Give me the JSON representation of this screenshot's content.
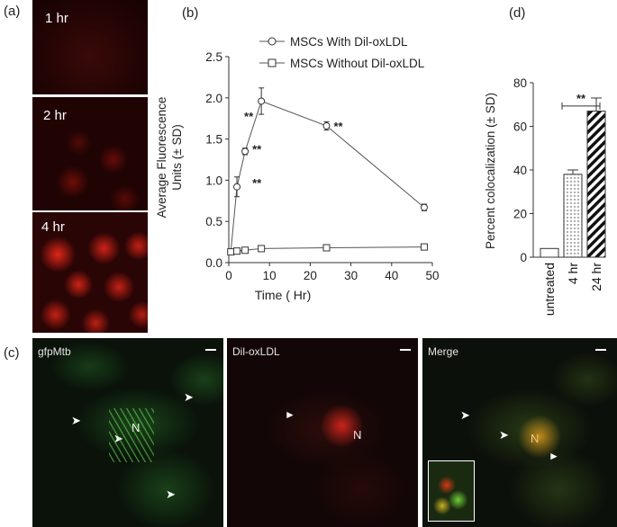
{
  "panels": {
    "a": {
      "letter": "(a)",
      "tiles": [
        {
          "label": "1 hr"
        },
        {
          "label": "2 hr"
        },
        {
          "label": "4 hr"
        }
      ]
    },
    "c": {
      "letter": "(c)",
      "channels": [
        {
          "label": "gfpMtb",
          "nucleus": "N"
        },
        {
          "label": "Dil-oxLDL",
          "nucleus": "N"
        },
        {
          "label": "Merge",
          "nucleus": "N"
        }
      ]
    }
  },
  "chart_data": [
    {
      "id": "b",
      "letter": "(b)",
      "type": "line",
      "xlabel": "Time ( Hr)",
      "ylabel_line1": "Average Fluorescence",
      "ylabel_line2": "Units (± SD)",
      "xlim": [
        0,
        50
      ],
      "ylim": [
        0,
        2.5
      ],
      "xticks": [
        0,
        10,
        20,
        30,
        40,
        50
      ],
      "yticks": [
        0.0,
        0.5,
        1.0,
        1.5,
        2.0,
        2.5
      ],
      "ytick_labels": [
        "0.0",
        "0.5",
        "1.0",
        "1.5",
        "2.0",
        "2.5"
      ],
      "legend": "top-right",
      "grid": false,
      "series": [
        {
          "name": "MSCs With Dil-oxLDL",
          "marker": "circle",
          "x": [
            0.5,
            2,
            4,
            8,
            24,
            48
          ],
          "y": [
            0.13,
            0.92,
            1.35,
            1.96,
            1.66,
            0.67
          ],
          "err": [
            0.02,
            0.12,
            0.04,
            0.16,
            0.05,
            0.04
          ]
        },
        {
          "name": "MSCs Without Dil-oxLDL",
          "marker": "square",
          "x": [
            0.5,
            2,
            4,
            8,
            24,
            48
          ],
          "y": [
            0.13,
            0.14,
            0.15,
            0.17,
            0.18,
            0.19
          ],
          "err": [
            0.01,
            0.01,
            0.01,
            0.01,
            0.01,
            0.02
          ]
        }
      ],
      "annotations": [
        {
          "text": "**",
          "x": 2,
          "y": 1.78
        },
        {
          "text": "**",
          "x": 4,
          "y": 1.38
        },
        {
          "text": "**",
          "x": 4,
          "y": 0.97
        },
        {
          "text": "**",
          "x": 24,
          "y": 1.66
        }
      ]
    },
    {
      "id": "d",
      "letter": "(d)",
      "type": "bar",
      "ylabel": "Percent colocalization (± SD)",
      "ylim": [
        0,
        80
      ],
      "yticks": [
        0,
        20,
        40,
        60,
        80
      ],
      "categories": [
        "untreated",
        "4 hr",
        "24 hr"
      ],
      "values": [
        4,
        38,
        67
      ],
      "err": [
        0,
        2,
        6
      ],
      "significance": {
        "text": "**",
        "between": [
          1,
          2
        ],
        "y": 71
      }
    }
  ]
}
